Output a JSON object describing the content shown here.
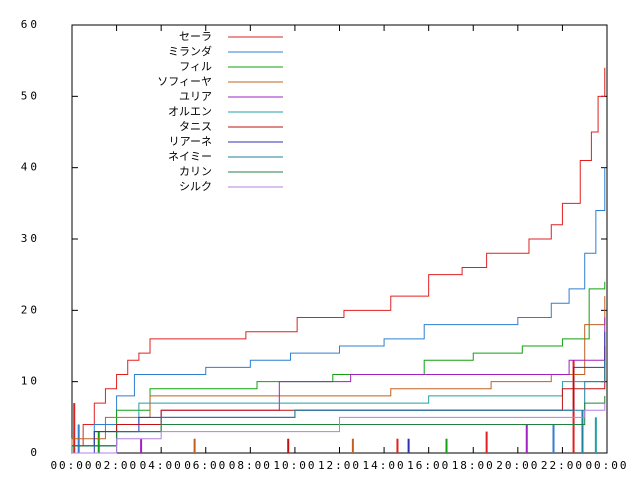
{
  "chart_data": {
    "type": "line",
    "step": true,
    "xlim": [
      0,
      24
    ],
    "ylim": [
      0,
      60
    ],
    "xticks": [
      {
        "value": 0,
        "label": "00:00"
      },
      {
        "value": 2,
        "label": "02:00"
      },
      {
        "value": 4,
        "label": "04:00"
      },
      {
        "value": 6,
        "label": "06:00"
      },
      {
        "value": 8,
        "label": "08:00"
      },
      {
        "value": 10,
        "label": "10:00"
      },
      {
        "value": 12,
        "label": "12:00"
      },
      {
        "value": 14,
        "label": "14:00"
      },
      {
        "value": 16,
        "label": "16:00"
      },
      {
        "value": 18,
        "label": "18:00"
      },
      {
        "value": 20,
        "label": "20:00"
      },
      {
        "value": 22,
        "label": "22:00"
      },
      {
        "value": 24,
        "label": "00:00"
      }
    ],
    "yticks": [
      0,
      10,
      20,
      30,
      40,
      50,
      60
    ],
    "legend": "top-left",
    "series": [
      {
        "name": "セーラ",
        "color": "#e02020",
        "x": [
          0,
          0.5,
          1,
          1.5,
          2,
          2.5,
          3,
          3.5,
          7.8,
          10.1,
          12.2,
          14.3,
          16,
          17.5,
          18.6,
          20.5,
          21.5,
          22,
          22.8,
          23.3,
          23.6,
          23.9
        ],
        "values": [
          1,
          4,
          7,
          9,
          11,
          13,
          14,
          16,
          17,
          19,
          20,
          22,
          25,
          26,
          28,
          30,
          32,
          35,
          41,
          45,
          50,
          54
        ]
      },
      {
        "name": "ミランダ",
        "color": "#2f7fd0",
        "x": [
          0,
          1,
          2,
          2.8,
          6,
          8,
          9.8,
          12,
          14,
          15.8,
          20,
          21.5,
          22.3,
          23,
          23.5,
          23.9
        ],
        "values": [
          1,
          4,
          8,
          11,
          12,
          13,
          14,
          15,
          16,
          18,
          19,
          21,
          23,
          28,
          34,
          40
        ]
      },
      {
        "name": "フィル",
        "color": "#10a010",
        "x": [
          0,
          1,
          2,
          3.5,
          8.3,
          11.7,
          15.8,
          18,
          20.2,
          22,
          23.2,
          23.9
        ],
        "values": [
          1,
          3,
          6,
          9,
          10,
          11,
          13,
          14,
          15,
          16,
          23,
          24
        ]
      },
      {
        "name": "ソフィーヤ",
        "color": "#c06020",
        "x": [
          0,
          1.5,
          3.5,
          14.3,
          18.8,
          21.5,
          23,
          23.9
        ],
        "values": [
          2,
          5,
          8,
          9,
          10,
          11,
          18,
          22
        ]
      },
      {
        "name": "ユリア",
        "color": "#a020c0",
        "x": [
          0,
          2,
          4,
          9.3,
          12.5,
          22.3,
          23.9
        ],
        "values": [
          1,
          4,
          6,
          10,
          11,
          13,
          19
        ]
      },
      {
        "name": "オルエン",
        "color": "#20a0a0",
        "x": [
          0,
          2,
          3,
          16,
          22,
          23.9
        ],
        "values": [
          1,
          4,
          7,
          8,
          10,
          13
        ]
      },
      {
        "name": "タニス",
        "color": "#c01010",
        "x": [
          0,
          2,
          4,
          22,
          23.9
        ],
        "values": [
          1,
          4,
          6,
          9,
          15
        ]
      },
      {
        "name": "リアーネ",
        "color": "#3030b0",
        "x": [
          0,
          1,
          3,
          10,
          22.5,
          23.9
        ],
        "values": [
          0,
          3,
          5,
          6,
          12,
          17
        ]
      },
      {
        "name": "ネイミー",
        "color": "#2080a0",
        "x": [
          0,
          2,
          4,
          10,
          23,
          23.9
        ],
        "values": [
          1,
          3,
          5,
          6,
          10,
          13
        ]
      },
      {
        "name": "カリン",
        "color": "#208040",
        "x": [
          0,
          2,
          4,
          23,
          23.9
        ],
        "values": [
          1,
          3,
          4,
          7,
          8
        ]
      },
      {
        "name": "シルク",
        "color": "#b080e0",
        "x": [
          0,
          2,
          4,
          12,
          23,
          23.9
        ],
        "values": [
          0,
          2,
          3,
          5,
          6,
          7
        ]
      }
    ],
    "bars": {
      "x": [
        0.1,
        0.3,
        1.2,
        3.1,
        5.5,
        9.7,
        12.6,
        14.6,
        15.1,
        16.8,
        18.6,
        20.4,
        21.6,
        22.5,
        22.9,
        23.5
      ],
      "values": [
        7,
        4,
        3,
        2,
        2,
        2,
        2,
        2,
        2,
        2,
        3,
        4,
        4,
        13,
        6,
        5
      ],
      "series": [
        0,
        1,
        2,
        4,
        3,
        6,
        3,
        0,
        7,
        2,
        0,
        4,
        1,
        0,
        8,
        5
      ]
    }
  }
}
